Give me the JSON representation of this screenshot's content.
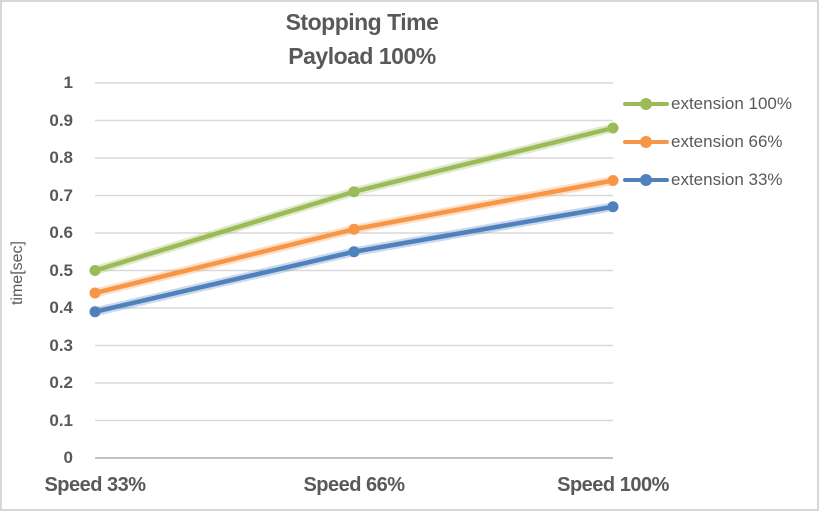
{
  "title": {
    "line1": "Stopping Time",
    "line2": "Payload 100%"
  },
  "y_axis_title": "time[sec]",
  "chart_data": {
    "type": "line",
    "title": "Stopping Time Payload 100%",
    "categories": [
      "Speed 33%",
      "Speed 66%",
      "Speed 100%"
    ],
    "series": [
      {
        "name": "extension 100%",
        "color": "#9BBB59",
        "values": [
          0.5,
          0.71,
          0.88
        ]
      },
      {
        "name": "extension 66%",
        "color": "#F79646",
        "values": [
          0.44,
          0.61,
          0.74
        ]
      },
      {
        "name": "extension 33%",
        "color": "#4F81BD",
        "values": [
          0.39,
          0.55,
          0.67
        ]
      }
    ],
    "xlabel": "",
    "ylabel": "time[sec]",
    "ylim": [
      0,
      1
    ],
    "yticks": [
      0,
      0.1,
      0.2,
      0.3,
      0.4,
      0.5,
      0.6,
      0.7,
      0.8,
      0.9,
      1
    ],
    "grid": true,
    "legend_position": "right",
    "marker": "circle"
  },
  "colors": {
    "text": "#595959",
    "gridline": "#D9D9D9",
    "zero_line": "#C3C3C3",
    "frame_border": "#D7D7D7",
    "background": "#FFFFFF"
  }
}
